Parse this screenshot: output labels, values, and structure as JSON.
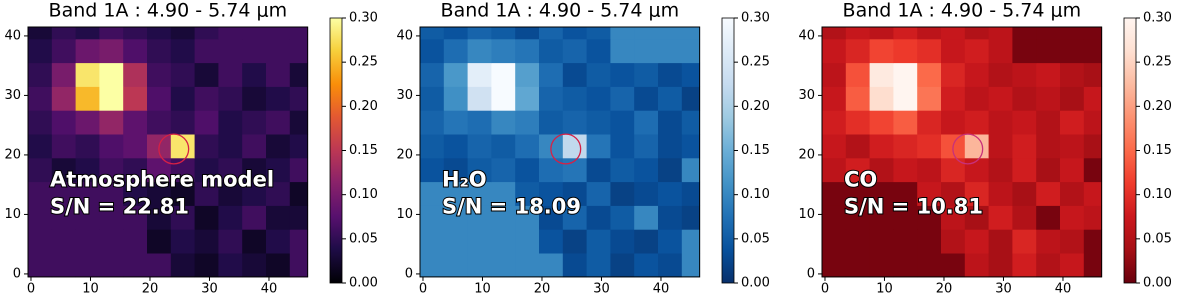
{
  "chart_data": [
    {
      "type": "heatmap",
      "title": "Band 1A : 4.90 - 5.74 μm",
      "colormap": "inferno",
      "annotations": [
        "Atmosphere model",
        "S/N = 22.81"
      ],
      "circle": {
        "x": 24,
        "y": 21,
        "radius": 2.5,
        "color": "#d62045"
      },
      "xlim": [
        -0.5,
        46.5
      ],
      "ylim": [
        -0.5,
        41.5
      ],
      "xticks": [
        0,
        10,
        20,
        30,
        40
      ],
      "yticks": [
        0,
        10,
        20,
        30,
        40
      ],
      "clim": [
        0,
        0.3
      ],
      "cticks": [
        {
          "value": 0,
          "label": "0.00"
        },
        0.05,
        {
          "value": 0.1,
          "label": "0.10"
        },
        0.15,
        {
          "value": 0.2,
          "label": "0.20"
        },
        0.25,
        {
          "value": 0.3,
          "label": "0.30"
        }
      ],
      "xbins": [
        -0.5,
        3.5,
        7.5,
        11.5,
        15.5,
        19.5,
        23.5,
        27.5,
        31.5,
        35.5,
        39.5,
        43.5,
        46.5
      ],
      "ybins": [
        -0.5,
        3.5,
        7.5,
        11.5,
        15.5,
        19.5,
        23.5,
        27.5,
        31.5,
        35.5,
        39.5,
        41.5
      ],
      "z": [
        [
          0.06,
          0.06,
          0.06,
          0.06,
          0.06,
          0.06,
          0.03,
          0.02,
          0.04,
          0.03,
          0.02,
          0.06
        ],
        [
          0.06,
          0.06,
          0.06,
          0.06,
          0.06,
          0.02,
          0.04,
          0.03,
          0.05,
          0.02,
          0.04,
          0.06
        ],
        [
          0.06,
          0.06,
          0.06,
          0.06,
          0.06,
          0.03,
          0.05,
          0.02,
          0.04,
          0.06,
          0.03,
          0.03
        ],
        [
          0.06,
          0.06,
          0.06,
          0.06,
          0.04,
          0.03,
          0.02,
          0.05,
          0.03,
          0.04,
          0.05,
          0.02
        ],
        [
          0.05,
          0.03,
          0.04,
          0.06,
          0.05,
          0.08,
          0.06,
          0.04,
          0.05,
          0.03,
          0.04,
          0.06
        ],
        [
          0.04,
          0.06,
          0.05,
          0.07,
          0.08,
          0.12,
          0.28,
          0.05,
          0.04,
          0.06,
          0.03,
          0.04
        ],
        [
          0.05,
          0.07,
          0.09,
          0.12,
          0.08,
          0.06,
          0.05,
          0.07,
          0.04,
          0.05,
          0.06,
          0.03
        ],
        [
          0.06,
          0.12,
          0.25,
          0.31,
          0.15,
          0.07,
          0.04,
          0.06,
          0.05,
          0.03,
          0.04,
          0.05
        ],
        [
          0.05,
          0.1,
          0.28,
          0.32,
          0.14,
          0.06,
          0.05,
          0.03,
          0.06,
          0.04,
          0.06,
          0.03
        ],
        [
          0.04,
          0.06,
          0.09,
          0.1,
          0.07,
          0.05,
          0.04,
          0.06,
          0.06,
          0.06,
          0.06,
          0.06
        ],
        [
          0.03,
          0.05,
          0.04,
          0.06,
          0.05,
          0.04,
          0.03,
          0.05,
          0.06,
          0.06,
          0.06,
          0.06
        ]
      ]
    },
    {
      "type": "heatmap",
      "title": "Band 1A : 4.90 - 5.74 μm",
      "colormap": "Blues_r",
      "annotations": [
        "H₂O",
        "S/N = 18.09"
      ],
      "circle": {
        "x": 24,
        "y": 21,
        "radius": 2.5,
        "color": "#d62045"
      },
      "xlim": [
        -0.5,
        46.5
      ],
      "ylim": [
        -0.5,
        41.5
      ],
      "xticks": [
        0,
        10,
        20,
        30,
        40
      ],
      "yticks": [
        0,
        10,
        20,
        30,
        40
      ],
      "clim": [
        0,
        0.3
      ],
      "cticks": [
        {
          "value": 0,
          "label": "0.00"
        },
        0.05,
        {
          "value": 0.1,
          "label": "0.10"
        },
        0.15,
        {
          "value": 0.2,
          "label": "0.20"
        },
        0.25,
        {
          "value": 0.3,
          "label": "0.30"
        }
      ],
      "xbins": [
        -0.5,
        3.5,
        7.5,
        11.5,
        15.5,
        19.5,
        23.5,
        27.5,
        31.5,
        35.5,
        39.5,
        43.5,
        46.5
      ],
      "ybins": [
        -0.5,
        3.5,
        7.5,
        11.5,
        15.5,
        19.5,
        23.5,
        27.5,
        31.5,
        35.5,
        39.5,
        41.5
      ],
      "z": [
        [
          0.1,
          0.1,
          0.1,
          0.1,
          0.1,
          0.1,
          0.03,
          0.05,
          0.02,
          0.04,
          0.03,
          0.1
        ],
        [
          0.1,
          0.1,
          0.1,
          0.1,
          0.1,
          0.04,
          0.02,
          0.05,
          0.03,
          0.02,
          0.04,
          0.1
        ],
        [
          0.1,
          0.1,
          0.1,
          0.1,
          0.1,
          0.03,
          0.06,
          0.03,
          0.05,
          0.1,
          0.03,
          0.02
        ],
        [
          0.1,
          0.1,
          0.1,
          0.1,
          0.05,
          0.04,
          0.03,
          0.06,
          0.02,
          0.03,
          0.04,
          0.03
        ],
        [
          0.04,
          0.03,
          0.05,
          0.06,
          0.04,
          0.07,
          0.08,
          0.03,
          0.05,
          0.04,
          0.02,
          0.1
        ],
        [
          0.05,
          0.04,
          0.06,
          0.05,
          0.07,
          0.1,
          0.22,
          0.08,
          0.04,
          0.06,
          0.03,
          0.04
        ],
        [
          0.06,
          0.08,
          0.07,
          0.1,
          0.09,
          0.05,
          0.06,
          0.05,
          0.04,
          0.07,
          0.03,
          0.05
        ],
        [
          0.05,
          0.11,
          0.24,
          0.3,
          0.14,
          0.06,
          0.05,
          0.04,
          0.06,
          0.03,
          0.05,
          0.02
        ],
        [
          0.06,
          0.12,
          0.27,
          0.31,
          0.13,
          0.07,
          0.03,
          0.05,
          0.04,
          0.05,
          0.03,
          0.04
        ],
        [
          0.04,
          0.07,
          0.1,
          0.09,
          0.08,
          0.05,
          0.06,
          0.04,
          0.1,
          0.1,
          0.1,
          0.1
        ],
        [
          0.05,
          0.04,
          0.06,
          0.05,
          0.03,
          0.06,
          0.04,
          0.05,
          0.1,
          0.1,
          0.1,
          0.1
        ]
      ]
    },
    {
      "type": "heatmap",
      "title": "Band 1A : 4.90 - 5.74 μm",
      "colormap": "Reds_r",
      "annotations": [
        "CO",
        "S/N = 10.81"
      ],
      "circle": {
        "x": 24,
        "y": 21,
        "radius": 2.5,
        "color": "#c8307a"
      },
      "xlim": [
        -0.5,
        46.5
      ],
      "ylim": [
        -0.5,
        41.5
      ],
      "xticks": [
        0,
        10,
        20,
        30,
        40
      ],
      "yticks": [
        0,
        10,
        20,
        30,
        40
      ],
      "clim": [
        0,
        0.3
      ],
      "cticks": [
        {
          "value": 0,
          "label": "0.00"
        },
        0.05,
        {
          "value": 0.1,
          "label": "0.10"
        },
        0.15,
        {
          "value": 0.2,
          "label": "0.20"
        },
        0.25,
        {
          "value": 0.3,
          "label": "0.30"
        }
      ],
      "xbins": [
        -0.5,
        3.5,
        7.5,
        11.5,
        15.5,
        19.5,
        23.5,
        27.5,
        31.5,
        35.5,
        39.5,
        43.5,
        46.5
      ],
      "ybins": [
        -0.5,
        3.5,
        7.5,
        11.5,
        15.5,
        19.5,
        23.5,
        27.5,
        31.5,
        35.5,
        39.5,
        41.5
      ],
      "z": [
        [
          0.01,
          0.01,
          0.01,
          0.01,
          0.01,
          0.01,
          0.06,
          0.04,
          0.08,
          0.05,
          0.07,
          0.01
        ],
        [
          0.01,
          0.01,
          0.01,
          0.01,
          0.01,
          0.05,
          0.07,
          0.04,
          0.09,
          0.06,
          0.05,
          0.01
        ],
        [
          0.01,
          0.01,
          0.01,
          0.01,
          0.01,
          0.06,
          0.04,
          0.08,
          0.05,
          0.01,
          0.07,
          0.06
        ],
        [
          0.01,
          0.01,
          0.01,
          0.01,
          0.07,
          0.05,
          0.09,
          0.06,
          0.04,
          0.08,
          0.05,
          0.07
        ],
        [
          0.06,
          0.08,
          0.05,
          0.07,
          0.06,
          0.09,
          0.07,
          0.05,
          0.08,
          0.04,
          0.07,
          0.01
        ],
        [
          0.07,
          0.05,
          0.08,
          0.09,
          0.1,
          0.13,
          0.22,
          0.06,
          0.08,
          0.05,
          0.06,
          0.04
        ],
        [
          0.08,
          0.1,
          0.12,
          0.14,
          0.09,
          0.07,
          0.08,
          0.06,
          0.07,
          0.05,
          0.08,
          0.06
        ],
        [
          0.07,
          0.14,
          0.26,
          0.31,
          0.16,
          0.08,
          0.06,
          0.07,
          0.05,
          0.06,
          0.04,
          0.07
        ],
        [
          0.06,
          0.13,
          0.28,
          0.32,
          0.15,
          0.09,
          0.07,
          0.05,
          0.06,
          0.07,
          0.05,
          0.04
        ],
        [
          0.07,
          0.09,
          0.12,
          0.11,
          0.1,
          0.07,
          0.08,
          0.06,
          0.01,
          0.01,
          0.01,
          0.01
        ],
        [
          0.05,
          0.07,
          0.06,
          0.08,
          0.06,
          0.07,
          0.05,
          0.06,
          0.01,
          0.01,
          0.01,
          0.01
        ]
      ]
    }
  ]
}
